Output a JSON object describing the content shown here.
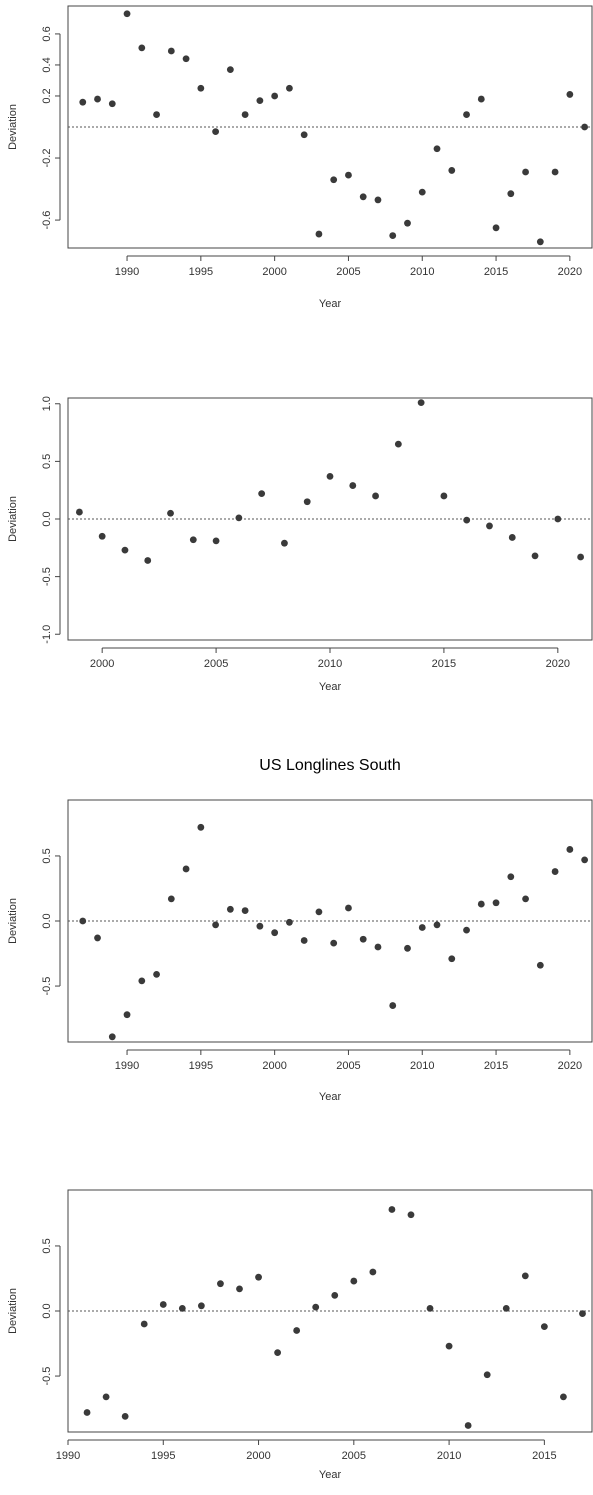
{
  "chart_data": [
    {
      "type": "scatter",
      "title": "",
      "xlabel": "Year",
      "ylabel": "Deviation",
      "xlim": [
        1986,
        2021.5
      ],
      "ylim": [
        -0.78,
        0.78
      ],
      "xticks": [
        1990,
        1995,
        2000,
        2005,
        2010,
        2015,
        2020
      ],
      "yticks": [
        -0.6,
        -0.2,
        0.2,
        0.4,
        0.6
      ],
      "ytick_labels": [
        "-0.6",
        "-0.2",
        "0.2",
        "0.4",
        "0.6"
      ],
      "reference_line": 0,
      "grid": false,
      "x": [
        1987,
        1988,
        1989,
        1990,
        1991,
        1992,
        1993,
        1994,
        1995,
        1996,
        1997,
        1998,
        1999,
        2000,
        2001,
        2002,
        2003,
        2004,
        2005,
        2006,
        2007,
        2008,
        2009,
        2010,
        2011,
        2012,
        2013,
        2014,
        2015,
        2016,
        2017,
        2018,
        2019,
        2020,
        2021
      ],
      "y": [
        0.16,
        0.18,
        0.15,
        0.73,
        0.51,
        0.08,
        0.49,
        0.44,
        0.25,
        -0.03,
        0.37,
        0.08,
        0.17,
        0.2,
        0.25,
        -0.05,
        -0.69,
        -0.34,
        -0.31,
        -0.45,
        -0.47,
        -0.7,
        -0.62,
        -0.42,
        -0.14,
        -0.28,
        0.08,
        0.18,
        -0.65,
        -0.43,
        -0.29,
        -0.74,
        -0.29,
        0.21,
        0.0
      ]
    },
    {
      "type": "scatter",
      "title": "",
      "xlabel": "Year",
      "ylabel": "Deviation",
      "xlim": [
        1998.5,
        2021.5
      ],
      "ylim": [
        -1.05,
        1.05
      ],
      "xticks": [
        2000,
        2005,
        2010,
        2015,
        2020
      ],
      "yticks": [
        -1.0,
        -0.5,
        0.0,
        0.5,
        1.0
      ],
      "ytick_labels": [
        "-1.0",
        "-0.5",
        "0.0",
        "0.5",
        "1.0"
      ],
      "reference_line": 0,
      "grid": false,
      "x": [
        1999,
        2000,
        2001,
        2002,
        2003,
        2004,
        2005,
        2006,
        2007,
        2008,
        2009,
        2010,
        2011,
        2012,
        2013,
        2014,
        2015,
        2016,
        2017,
        2018,
        2019,
        2020,
        2021
      ],
      "y": [
        0.06,
        -0.15,
        -0.27,
        -0.36,
        0.05,
        -0.18,
        -0.19,
        0.01,
        0.22,
        -0.21,
        0.15,
        0.37,
        0.29,
        0.2,
        0.65,
        1.01,
        0.2,
        -0.01,
        -0.06,
        -0.16,
        -0.32,
        0.0,
        -0.33
      ]
    },
    {
      "type": "scatter",
      "title": "US Longlines South",
      "xlabel": "Year",
      "ylabel": "Deviation",
      "xlim": [
        1986,
        2021.5
      ],
      "ylim": [
        -0.93,
        0.93
      ],
      "xticks": [
        1990,
        1995,
        2000,
        2005,
        2010,
        2015,
        2020
      ],
      "yticks": [
        -0.5,
        0.0,
        0.5
      ],
      "ytick_labels": [
        "-0.5",
        "0.0",
        "0.5"
      ],
      "reference_line": 0,
      "grid": false,
      "x": [
        1987,
        1988,
        1989,
        1990,
        1991,
        1992,
        1993,
        1994,
        1995,
        1996,
        1997,
        1998,
        1999,
        2000,
        2001,
        2002,
        2003,
        2004,
        2005,
        2006,
        2007,
        2008,
        2009,
        2010,
        2011,
        2012,
        2013,
        2014,
        2015,
        2016,
        2017,
        2018,
        2019,
        2020,
        2021
      ],
      "y": [
        0.0,
        -0.13,
        -0.89,
        -0.72,
        -0.46,
        -0.41,
        0.17,
        0.4,
        0.72,
        -0.03,
        0.09,
        0.08,
        -0.04,
        -0.09,
        -0.01,
        -0.15,
        0.07,
        -0.17,
        0.1,
        -0.14,
        -0.2,
        -0.65,
        -0.21,
        -0.05,
        -0.03,
        -0.29,
        -0.07,
        0.13,
        0.14,
        0.34,
        0.17,
        -0.34,
        0.38,
        0.55,
        0.47
      ]
    },
    {
      "type": "scatter",
      "title": "",
      "xlabel": "Year",
      "ylabel": "Deviation",
      "xlim": [
        1990,
        2017.5
      ],
      "ylim": [
        -0.93,
        0.93
      ],
      "xticks": [
        1990,
        1995,
        2000,
        2005,
        2010,
        2015
      ],
      "yticks": [
        -0.5,
        0.0,
        0.5
      ],
      "ytick_labels": [
        "-0.5",
        "0.0",
        "0.5"
      ],
      "reference_line": 0,
      "grid": false,
      "x": [
        1991,
        1992,
        1993,
        1994,
        1995,
        1996,
        1997,
        1998,
        1999,
        2000,
        2001,
        2002,
        2003,
        2004,
        2005,
        2006,
        2007,
        2008,
        2009,
        2010,
        2011,
        2012,
        2013,
        2014,
        2015,
        2016,
        2017
      ],
      "y": [
        -0.78,
        -0.66,
        -0.81,
        -0.1,
        0.05,
        0.02,
        0.04,
        0.21,
        0.17,
        0.26,
        -0.32,
        -0.15,
        0.03,
        0.12,
        0.23,
        0.3,
        0.78,
        0.74,
        0.02,
        -0.27,
        -0.88,
        -0.49,
        0.02,
        0.27,
        -0.12,
        -0.66,
        -0.02
      ]
    }
  ]
}
